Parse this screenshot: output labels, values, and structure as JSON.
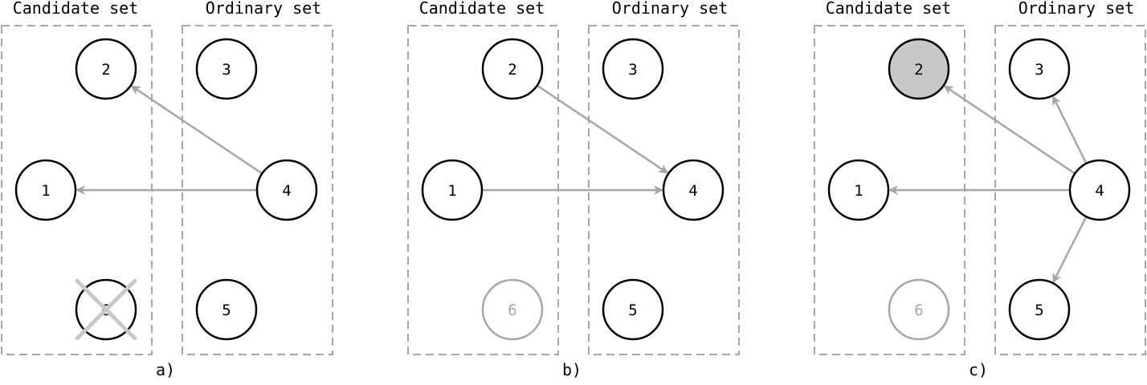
{
  "colors": {
    "node_stroke": "#000000",
    "node_fill": "#ffffff",
    "highlight_fill": "#c8c8c8",
    "removed_stroke": "#a6a6a6",
    "edge": "#a6a6a6",
    "box": "#a6a6a6",
    "cross": "#c8c8c8"
  },
  "panels": [
    {
      "label": "a)",
      "candidate_title": "Candidate set",
      "ordinary_title": "Ordinary set",
      "nodes": [
        {
          "id": "1",
          "label": "1",
          "state": "normal"
        },
        {
          "id": "2",
          "label": "2",
          "state": "normal"
        },
        {
          "id": "6",
          "label": "6",
          "state": "crossed"
        },
        {
          "id": "3",
          "label": "3",
          "state": "normal"
        },
        {
          "id": "4",
          "label": "4",
          "state": "normal"
        },
        {
          "id": "5",
          "label": "5",
          "state": "normal"
        }
      ],
      "edges": [
        {
          "from": "4",
          "to": "2"
        },
        {
          "from": "4",
          "to": "1"
        }
      ]
    },
    {
      "label": "b)",
      "candidate_title": "Candidate set",
      "ordinary_title": "Ordinary set",
      "nodes": [
        {
          "id": "1",
          "label": "1",
          "state": "normal"
        },
        {
          "id": "2",
          "label": "2",
          "state": "normal"
        },
        {
          "id": "6",
          "label": "6",
          "state": "removed"
        },
        {
          "id": "3",
          "label": "3",
          "state": "normal"
        },
        {
          "id": "4",
          "label": "4",
          "state": "normal"
        },
        {
          "id": "5",
          "label": "5",
          "state": "normal"
        }
      ],
      "edges": [
        {
          "from": "2",
          "to": "4"
        },
        {
          "from": "1",
          "to": "4"
        }
      ]
    },
    {
      "label": "c)",
      "candidate_title": "Candidate set",
      "ordinary_title": "Ordinary set",
      "nodes": [
        {
          "id": "1",
          "label": "1",
          "state": "normal"
        },
        {
          "id": "2",
          "label": "2",
          "state": "highlighted"
        },
        {
          "id": "6",
          "label": "6",
          "state": "removed"
        },
        {
          "id": "3",
          "label": "3",
          "state": "normal"
        },
        {
          "id": "4",
          "label": "4",
          "state": "normal"
        },
        {
          "id": "5",
          "label": "5",
          "state": "normal"
        }
      ],
      "edges": [
        {
          "from": "4",
          "to": "2"
        },
        {
          "from": "4",
          "to": "1"
        },
        {
          "from": "4",
          "to": "3"
        },
        {
          "from": "4",
          "to": "5"
        }
      ]
    }
  ]
}
